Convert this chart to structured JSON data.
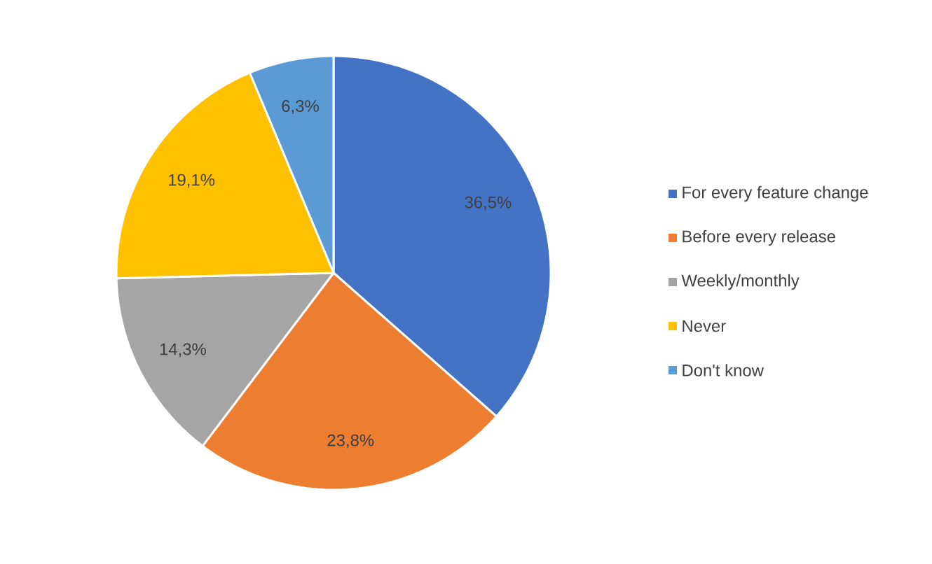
{
  "chart_data": {
    "type": "pie",
    "categories": [
      "For every feature change",
      "Before every release",
      "Weekly/monthly",
      "Never",
      "Don't know"
    ],
    "values": [
      36.5,
      23.8,
      14.3,
      19.1,
      6.3
    ],
    "value_labels": [
      "36,5%",
      "23,8%",
      "14,3%",
      "19,1%",
      "6,3%"
    ],
    "colors": [
      "#4472c4",
      "#ed7d31",
      "#a5a5a5",
      "#ffc000",
      "#5b9bd5"
    ],
    "legend": "right"
  }
}
